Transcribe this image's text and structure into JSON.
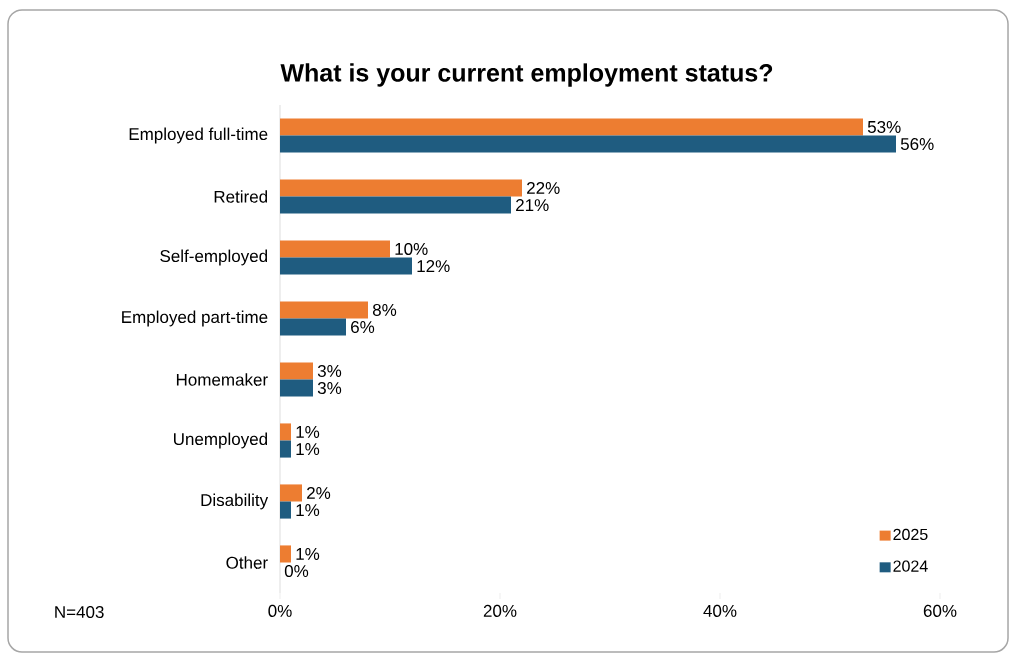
{
  "chart_data": {
    "type": "bar",
    "orientation": "horizontal",
    "title": "What is your current employment status?",
    "categories": [
      "Employed full-time",
      "Retired",
      "Self-employed",
      "Employed part-time",
      "Homemaker",
      "Unemployed",
      "Disability",
      "Other"
    ],
    "series": [
      {
        "name": "2025",
        "color": "#ed7d31",
        "values": [
          53,
          22,
          10,
          8,
          3,
          1,
          2,
          1
        ],
        "value_labels": [
          "53%",
          "22%",
          "10%",
          "8%",
          "3%",
          "1%",
          "2%",
          "1%"
        ]
      },
      {
        "name": "2024",
        "color": "#1f5c80",
        "values": [
          56,
          21,
          12,
          6,
          3,
          1,
          1,
          0
        ],
        "value_labels": [
          "56%",
          "21%",
          "12%",
          "6%",
          "3%",
          "1%",
          "1%",
          "0%"
        ]
      }
    ],
    "xlim": [
      0,
      60
    ],
    "xticks": [
      {
        "value": 0,
        "label": "0%"
      },
      {
        "value": 20,
        "label": "20%"
      },
      {
        "value": 40,
        "label": "40%"
      },
      {
        "value": 60,
        "label": "60%"
      }
    ],
    "legend": "bottom right",
    "annotations": [
      "N=403"
    ]
  }
}
